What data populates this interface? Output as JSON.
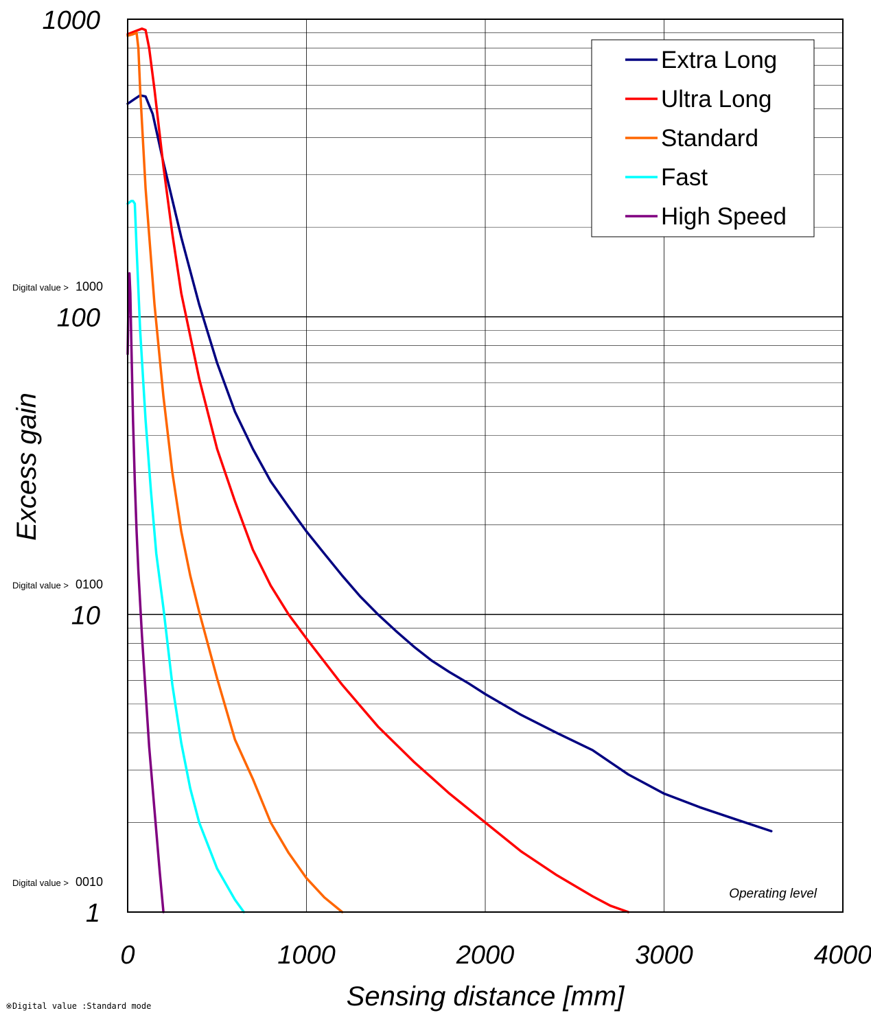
{
  "chart_data": {
    "type": "line",
    "xlabel": "Sensing distance  [mm]",
    "ylabel": "Excess gain",
    "xlim": [
      0,
      4000
    ],
    "ylim": [
      1,
      1000
    ],
    "yscale": "log",
    "x_ticks": [
      "0",
      "1000",
      "2000",
      "3000",
      "4000"
    ],
    "y_ticks": [
      {
        "value": 1,
        "label": "1"
      },
      {
        "value": 10,
        "label": "10"
      },
      {
        "value": 100,
        "label": "100"
      },
      {
        "value": 1000,
        "label": "1000"
      }
    ],
    "grid": true,
    "legend_position": "top-right",
    "annotations": {
      "operating_level": "Operating level",
      "digital_prefix": "Digital value >",
      "digital_markers": [
        {
          "value": 1,
          "label": "0010"
        },
        {
          "value": 10,
          "label": "0100"
        },
        {
          "value": 100,
          "label": "1000"
        }
      ],
      "footnote": "※Digital value :Standard mode"
    },
    "series": [
      {
        "name": "Extra Long",
        "color": "#000080",
        "x": [
          0,
          40,
          70,
          100,
          140,
          200,
          300,
          400,
          500,
          600,
          700,
          800,
          900,
          1000,
          1100,
          1200,
          1300,
          1400,
          1500,
          1600,
          1700,
          1800,
          1900,
          2000,
          2200,
          2400,
          2600,
          2800,
          3000,
          3200,
          3400,
          3600
        ],
        "y": [
          520,
          540,
          555,
          550,
          480,
          330,
          185,
          110,
          70,
          48,
          36,
          28,
          23,
          19,
          16,
          13.5,
          11.5,
          10,
          8.8,
          7.8,
          7,
          6.4,
          5.9,
          5.4,
          4.6,
          4,
          3.5,
          2.9,
          2.5,
          2.25,
          2.05,
          1.87
        ]
      },
      {
        "name": "Ultra Long",
        "color": "#ff0000",
        "x": [
          0,
          40,
          80,
          100,
          120,
          150,
          200,
          250,
          300,
          400,
          500,
          600,
          700,
          800,
          900,
          1000,
          1200,
          1400,
          1600,
          1800,
          2000,
          2200,
          2400,
          2600,
          2700,
          2800
        ],
        "y": [
          890,
          910,
          930,
          920,
          800,
          580,
          320,
          190,
          120,
          62,
          36,
          24,
          16.5,
          12.5,
          10,
          8.3,
          5.8,
          4.2,
          3.2,
          2.5,
          2,
          1.6,
          1.33,
          1.13,
          1.05,
          1
        ]
      },
      {
        "name": "Standard",
        "color": "#ff6600",
        "x": [
          0,
          30,
          50,
          60,
          70,
          100,
          150,
          200,
          250,
          300,
          350,
          400,
          500,
          600,
          700,
          800,
          900,
          1000,
          1100,
          1200
        ],
        "y": [
          880,
          890,
          900,
          800,
          580,
          270,
          110,
          54,
          30,
          19,
          13.5,
          10.2,
          6.1,
          3.8,
          2.8,
          2,
          1.58,
          1.3,
          1.12,
          1
        ]
      },
      {
        "name": "Fast",
        "color": "#00ffff",
        "x": [
          0,
          20,
          30,
          40,
          50,
          70,
          100,
          130,
          160,
          200,
          250,
          300,
          350,
          400,
          500,
          600,
          650
        ],
        "y": [
          240,
          245,
          245,
          240,
          170,
          90,
          45,
          26,
          16,
          10.5,
          5.8,
          3.7,
          2.6,
          2,
          1.4,
          1.1,
          1
        ]
      },
      {
        "name": "High Speed",
        "color": "#800080",
        "x": [
          0,
          5,
          10,
          15,
          20,
          30,
          40,
          50,
          60,
          80,
          100,
          120,
          150,
          180,
          200
        ],
        "y": [
          75,
          120,
          140,
          120,
          85,
          45,
          28,
          19,
          14,
          8.5,
          5.5,
          3.6,
          2.2,
          1.35,
          1
        ]
      }
    ]
  }
}
